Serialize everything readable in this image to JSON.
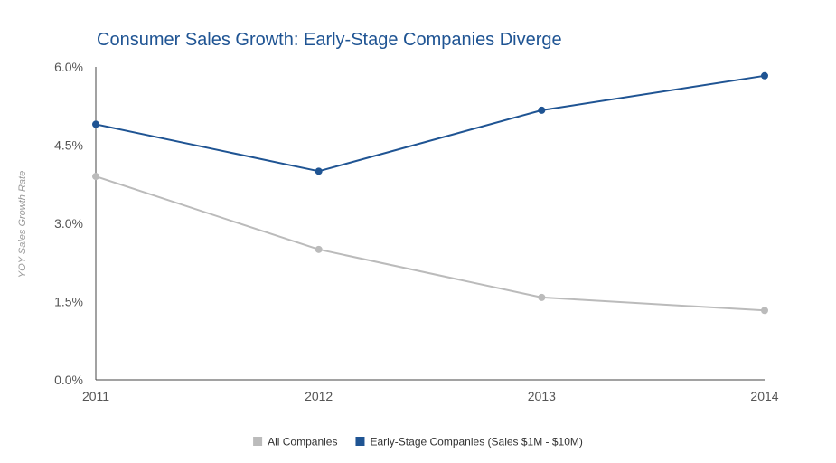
{
  "chart_data": {
    "type": "line",
    "title": "Consumer Sales Growth: Early-Stage Companies Diverge",
    "xlabel": "",
    "ylabel": "YOY Sales Growth Rate",
    "categories": [
      "2011",
      "2012",
      "2013",
      "2014"
    ],
    "ylim": [
      0,
      6
    ],
    "yticks": [
      0,
      1.5,
      3,
      4.5,
      6
    ],
    "ytick_labels": [
      "0.0%",
      "1.5%",
      "3.0%",
      "4.5%",
      "6.0%"
    ],
    "grid": false,
    "legend_position": "bottom",
    "series": [
      {
        "name": "All Companies",
        "color": "#bbbbbb",
        "values": [
          3.9,
          2.5,
          1.58,
          1.33
        ]
      },
      {
        "name": "Early-Stage Companies (Sales $1M - $10M)",
        "color": "#1f5493",
        "values": [
          4.9,
          4.0,
          5.17,
          5.83
        ]
      }
    ]
  }
}
